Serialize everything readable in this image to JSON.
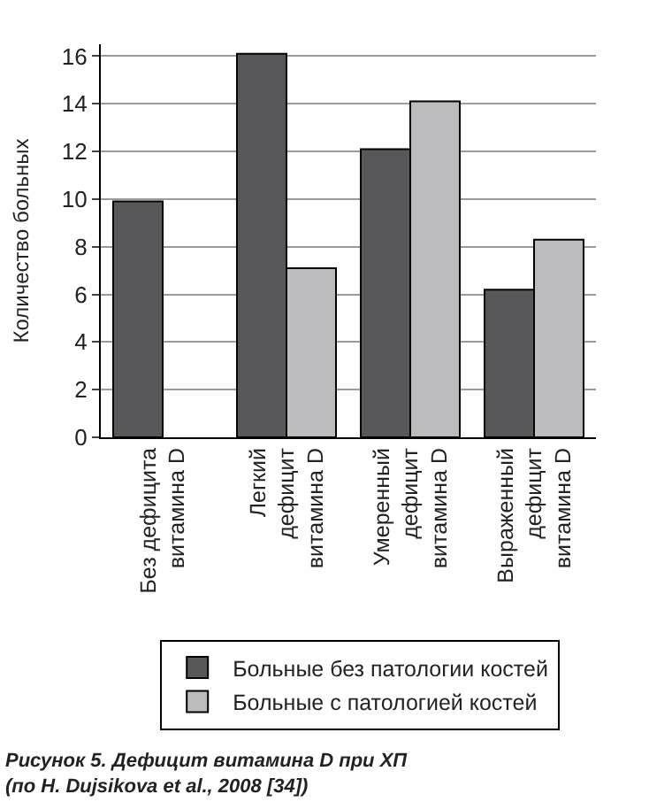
{
  "chart_data": {
    "type": "bar",
    "categories": [
      "Без дефицита\nвитамина D",
      "Легкий\nдефицит\nвитамина D",
      "Умеренный\nдефицит\nвитамина D",
      "Выраженный\nдефицит\nвитамина D"
    ],
    "series": [
      {
        "name": "Больные без патологии костей",
        "color": "#58585a",
        "values": [
          9.9,
          16.1,
          12.1,
          6.2
        ]
      },
      {
        "name": "Больные с патологией костей",
        "color": "#bcbcbe",
        "values": [
          null,
          7.1,
          14.1,
          8.3
        ]
      }
    ],
    "ylabel": "Количество больных",
    "ylim": [
      0,
      16.5
    ],
    "yticks": [
      0,
      2,
      4,
      6,
      8,
      10,
      12,
      14,
      16
    ],
    "grid": "y",
    "legend": "bottom",
    "annotations": [
      "Рисунок 5. Дефицит витамина D при ХП\n(по H. Dujsikova et al., 2008 [34])"
    ]
  }
}
